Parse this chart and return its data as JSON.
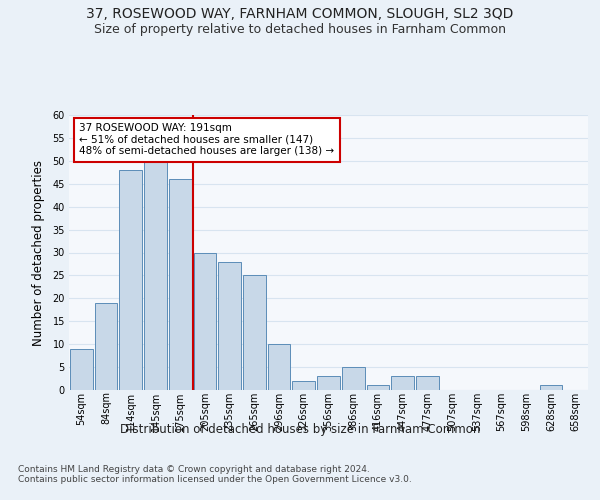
{
  "title": "37, ROSEWOOD WAY, FARNHAM COMMON, SLOUGH, SL2 3QD",
  "subtitle": "Size of property relative to detached houses in Farnham Common",
  "xlabel": "Distribution of detached houses by size in Farnham Common",
  "ylabel": "Number of detached properties",
  "bin_labels": [
    "54sqm",
    "84sqm",
    "114sqm",
    "145sqm",
    "175sqm",
    "205sqm",
    "235sqm",
    "265sqm",
    "296sqm",
    "326sqm",
    "356sqm",
    "386sqm",
    "416sqm",
    "447sqm",
    "477sqm",
    "507sqm",
    "537sqm",
    "567sqm",
    "598sqm",
    "628sqm",
    "658sqm"
  ],
  "bar_values": [
    9,
    19,
    48,
    50,
    46,
    30,
    28,
    25,
    10,
    2,
    3,
    5,
    1,
    3,
    3,
    0,
    0,
    0,
    0,
    1,
    0
  ],
  "bar_color": "#c8d8e8",
  "bar_edge_color": "#5b8db8",
  "annotation_text": "37 ROSEWOOD WAY: 191sqm\n← 51% of detached houses are smaller (147)\n48% of semi-detached houses are larger (138) →",
  "annotation_box_color": "white",
  "annotation_box_edge": "#cc0000",
  "vline_color": "#cc0000",
  "ylim": [
    0,
    60
  ],
  "yticks": [
    0,
    5,
    10,
    15,
    20,
    25,
    30,
    35,
    40,
    45,
    50,
    55,
    60
  ],
  "footnote": "Contains HM Land Registry data © Crown copyright and database right 2024.\nContains public sector information licensed under the Open Government Licence v3.0.",
  "bg_color": "#eaf1f8",
  "plot_bg_color": "#f5f8fc",
  "grid_color": "#d8e4f0",
  "title_fontsize": 10,
  "subtitle_fontsize": 9,
  "label_fontsize": 8.5,
  "tick_fontsize": 7,
  "annot_fontsize": 7.5,
  "footnote_fontsize": 6.5
}
